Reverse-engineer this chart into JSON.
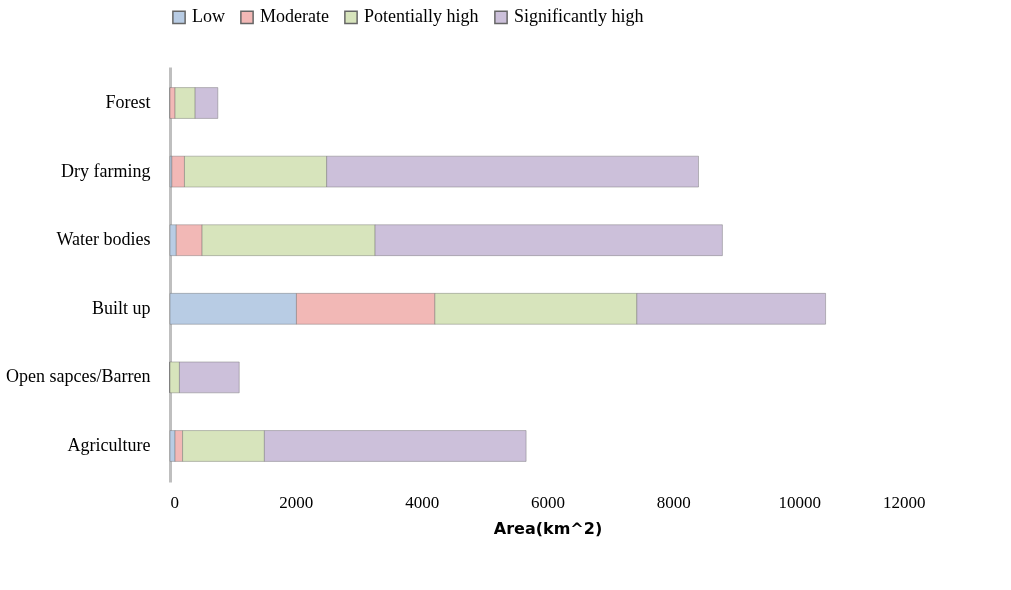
{
  "chart_data": {
    "type": "bar",
    "orientation": "horizontal",
    "stacked": true,
    "xlabel": "Area(km^2)",
    "categories": [
      "Forest",
      "Dry farming",
      "Water bodies",
      "Built up",
      "Open sapces/Barren",
      "Agriculture"
    ],
    "series": [
      {
        "name": "Low",
        "color": "#b8cce4",
        "values": [
          0,
          30,
          100,
          2010,
          0,
          80
        ]
      },
      {
        "name": "Moderate",
        "color": "#f2b8b6",
        "values": [
          80,
          200,
          410,
          2200,
          0,
          120
        ]
      },
      {
        "name": "Potentially high",
        "color": "#d7e4bc",
        "values": [
          320,
          2260,
          2750,
          3210,
          150,
          1300
        ]
      },
      {
        "name": "Significantly high",
        "color": "#ccc0da",
        "values": [
          360,
          5910,
          5520,
          3000,
          950,
          4160
        ]
      }
    ],
    "xlim": [
      0,
      12000
    ],
    "xticks": [
      0,
      2000,
      4000,
      6000,
      8000,
      10000,
      12000
    ],
    "grid": false,
    "legend": "top"
  }
}
